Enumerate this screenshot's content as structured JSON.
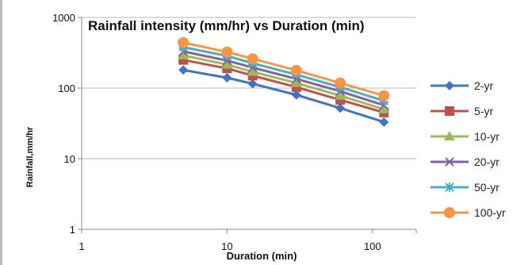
{
  "chart_data": {
    "type": "line",
    "title": "Rainfall intensity (mm/hr) vs Duration (min)",
    "xlabel": "Duration (min)",
    "ylabel": "Rainfall,mm/hr",
    "x_scale": "log",
    "y_scale": "log",
    "xlim": [
      1,
      200
    ],
    "ylim": [
      1,
      1000
    ],
    "x_ticks": [
      "1",
      "10",
      "100"
    ],
    "y_ticks": [
      "1",
      "10",
      "100",
      "1000"
    ],
    "grid": "horizontal",
    "legend_position": "right",
    "x": [
      5,
      10,
      15,
      30,
      60,
      120
    ],
    "series": [
      {
        "name": "2-yr",
        "color": "#4472C4",
        "marker": "diamond",
        "values": [
          180,
          140,
          115,
          80,
          52,
          33
        ]
      },
      {
        "name": "5-yr",
        "color": "#C0504D",
        "marker": "square",
        "values": [
          250,
          190,
          150,
          103,
          68,
          45
        ]
      },
      {
        "name": "10-yr",
        "color": "#9BBB59",
        "marker": "triangle",
        "values": [
          290,
          215,
          170,
          118,
          78,
          50
        ]
      },
      {
        "name": "20-yr",
        "color": "#8064A2",
        "marker": "x",
        "values": [
          330,
          245,
          195,
          135,
          90,
          57
        ]
      },
      {
        "name": "50-yr",
        "color": "#4BACC6",
        "marker": "star",
        "values": [
          380,
          285,
          225,
          155,
          103,
          66
        ]
      },
      {
        "name": "100-yr",
        "color": "#F79646",
        "marker": "circle",
        "values": [
          440,
          325,
          260,
          178,
          118,
          78
        ]
      }
    ]
  }
}
